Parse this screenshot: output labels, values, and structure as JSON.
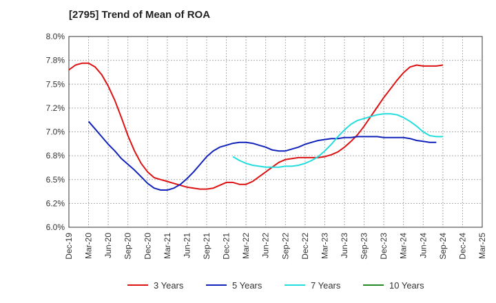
{
  "chart_data": {
    "type": "line",
    "title": "[2795]  Trend of Mean of ROA",
    "xlabel": "",
    "ylabel": "",
    "x_ticks": [
      "Dec-19",
      "Mar-20",
      "Jun-20",
      "Sep-20",
      "Dec-20",
      "Mar-21",
      "Jun-21",
      "Sep-21",
      "Dec-21",
      "Mar-22",
      "Jun-22",
      "Sep-22",
      "Dec-22",
      "Mar-23",
      "Jun-23",
      "Sep-23",
      "Dec-23",
      "Mar-24",
      "Jun-24",
      "Sep-24",
      "Dec-24",
      "Mar-25"
    ],
    "y_ticks": [
      "6.0%",
      "6.2%",
      "6.5%",
      "6.8%",
      "7.0%",
      "7.2%",
      "7.5%",
      "7.8%",
      "8.0%"
    ],
    "ylim": [
      6.0,
      8.0
    ],
    "grid": true,
    "legend_position": "bottom",
    "series": [
      {
        "name": "3 Years",
        "color": "#dd1111",
        "points": [
          [
            0,
            7.65
          ],
          [
            1,
            7.7
          ],
          [
            2,
            7.72
          ],
          [
            3,
            7.72
          ],
          [
            4,
            7.68
          ],
          [
            5,
            7.6
          ],
          [
            6,
            7.48
          ],
          [
            7,
            7.33
          ],
          [
            8,
            7.15
          ],
          [
            9,
            6.96
          ],
          [
            10,
            6.8
          ],
          [
            11,
            6.67
          ],
          [
            12,
            6.58
          ],
          [
            13,
            6.52
          ],
          [
            14,
            6.5
          ],
          [
            15,
            6.48
          ],
          [
            16,
            6.46
          ],
          [
            17,
            6.44
          ],
          [
            18,
            6.42
          ],
          [
            19,
            6.41
          ],
          [
            20,
            6.4
          ],
          [
            21,
            6.4
          ],
          [
            22,
            6.41
          ],
          [
            23,
            6.44
          ],
          [
            24,
            6.47
          ],
          [
            25,
            6.47
          ],
          [
            26,
            6.45
          ],
          [
            27,
            6.45
          ],
          [
            28,
            6.48
          ],
          [
            29,
            6.53
          ],
          [
            30,
            6.58
          ],
          [
            31,
            6.63
          ],
          [
            32,
            6.68
          ],
          [
            33,
            6.71
          ],
          [
            34,
            6.72
          ],
          [
            35,
            6.73
          ],
          [
            36,
            6.73
          ],
          [
            37,
            6.73
          ],
          [
            38,
            6.73
          ],
          [
            39,
            6.74
          ],
          [
            40,
            6.76
          ],
          [
            41,
            6.79
          ],
          [
            42,
            6.84
          ],
          [
            43,
            6.9
          ],
          [
            44,
            6.97
          ],
          [
            45,
            7.06
          ],
          [
            46,
            7.16
          ],
          [
            47,
            7.26
          ],
          [
            48,
            7.36
          ],
          [
            49,
            7.45
          ],
          [
            50,
            7.54
          ],
          [
            51,
            7.62
          ],
          [
            52,
            7.68
          ],
          [
            53,
            7.7
          ],
          [
            54,
            7.69
          ],
          [
            55,
            7.69
          ],
          [
            56,
            7.69
          ],
          [
            57,
            7.7
          ]
        ]
      },
      {
        "name": "5 Years",
        "color": "#1122bb",
        "points": [
          [
            3,
            7.11
          ],
          [
            4,
            7.03
          ],
          [
            5,
            6.95
          ],
          [
            6,
            6.87
          ],
          [
            7,
            6.8
          ],
          [
            8,
            6.72
          ],
          [
            9,
            6.66
          ],
          [
            10,
            6.6
          ],
          [
            11,
            6.53
          ],
          [
            12,
            6.46
          ],
          [
            13,
            6.41
          ],
          [
            14,
            6.39
          ],
          [
            15,
            6.39
          ],
          [
            16,
            6.41
          ],
          [
            17,
            6.45
          ],
          [
            18,
            6.51
          ],
          [
            19,
            6.58
          ],
          [
            20,
            6.66
          ],
          [
            21,
            6.74
          ],
          [
            22,
            6.8
          ],
          [
            23,
            6.84
          ],
          [
            24,
            6.86
          ],
          [
            25,
            6.88
          ],
          [
            26,
            6.89
          ],
          [
            27,
            6.89
          ],
          [
            28,
            6.88
          ],
          [
            29,
            6.86
          ],
          [
            30,
            6.84
          ],
          [
            31,
            6.81
          ],
          [
            32,
            6.8
          ],
          [
            33,
            6.8
          ],
          [
            34,
            6.82
          ],
          [
            35,
            6.84
          ],
          [
            36,
            6.87
          ],
          [
            37,
            6.89
          ],
          [
            38,
            6.91
          ],
          [
            39,
            6.92
          ],
          [
            40,
            6.93
          ],
          [
            41,
            6.93
          ],
          [
            42,
            6.94
          ],
          [
            43,
            6.94
          ],
          [
            44,
            6.95
          ],
          [
            45,
            6.95
          ],
          [
            46,
            6.95
          ],
          [
            47,
            6.95
          ],
          [
            48,
            6.94
          ],
          [
            49,
            6.94
          ],
          [
            50,
            6.94
          ],
          [
            51,
            6.94
          ],
          [
            52,
            6.93
          ],
          [
            53,
            6.91
          ],
          [
            54,
            6.9
          ],
          [
            55,
            6.89
          ],
          [
            56,
            6.89
          ]
        ]
      },
      {
        "name": "7 Years",
        "color": "#22dddd",
        "points": [
          [
            25,
            6.74
          ],
          [
            26,
            6.7
          ],
          [
            27,
            6.67
          ],
          [
            28,
            6.65
          ],
          [
            29,
            6.64
          ],
          [
            30,
            6.63
          ],
          [
            31,
            6.63
          ],
          [
            32,
            6.63
          ],
          [
            33,
            6.64
          ],
          [
            34,
            6.64
          ],
          [
            35,
            6.65
          ],
          [
            36,
            6.67
          ],
          [
            37,
            6.7
          ],
          [
            38,
            6.74
          ],
          [
            39,
            6.8
          ],
          [
            40,
            6.87
          ],
          [
            41,
            6.95
          ],
          [
            42,
            7.02
          ],
          [
            43,
            7.08
          ],
          [
            44,
            7.12
          ],
          [
            45,
            7.14
          ],
          [
            46,
            7.16
          ],
          [
            47,
            7.18
          ],
          [
            48,
            7.19
          ],
          [
            49,
            7.19
          ],
          [
            50,
            7.18
          ],
          [
            51,
            7.15
          ],
          [
            52,
            7.11
          ],
          [
            53,
            7.06
          ],
          [
            54,
            7.0
          ],
          [
            55,
            6.96
          ],
          [
            56,
            6.95
          ],
          [
            57,
            6.95
          ]
        ]
      },
      {
        "name": "10 Years",
        "color": "#228822",
        "points": []
      }
    ]
  }
}
